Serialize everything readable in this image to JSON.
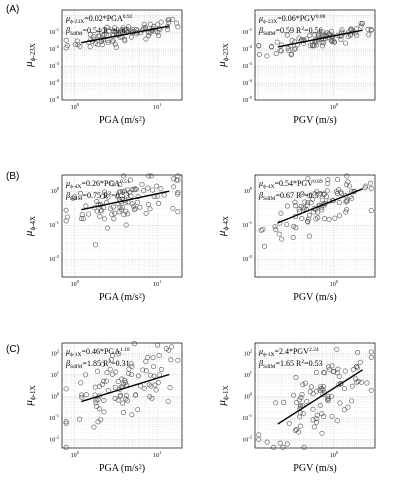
{
  "figure": {
    "panel_labels": [
      "(A)",
      "(B)",
      "(C)"
    ]
  },
  "chart_data": [
    {
      "type": "scatter",
      "panel": "(A)",
      "xlabel": "PGA (m/s²)",
      "ylabel": {
        "sym": "μ",
        "sub": "ϕ-23X"
      },
      "ann1": {
        "sym": "μ",
        "sub": "ϕ-23X",
        "text": "=0.02*PGA",
        "sup": "0.92"
      },
      "ann2": {
        "sym": "β",
        "sub": "SdIM",
        "text": "=0.54   R",
        "sup": "2",
        "tail": "=0.65"
      },
      "xlim": [
        0.7,
        20
      ],
      "xlog": true,
      "xticks": [
        {
          "v": 1,
          "b": "10",
          "e": "0"
        },
        {
          "v": 10,
          "b": "10",
          "e": "1"
        }
      ],
      "ylim": [
        1e-05,
        2
      ],
      "ylog": true,
      "yticks": [
        {
          "v": 0.1,
          "b": "10",
          "e": "-1"
        },
        {
          "v": 0.01,
          "b": "10",
          "e": "-2"
        },
        {
          "v": 0.001,
          "b": "10",
          "e": "-3"
        },
        {
          "v": 0.0001,
          "b": "10",
          "e": "-4"
        },
        {
          "v": 1e-05,
          "b": "10",
          "e": "-5"
        }
      ],
      "fit": {
        "a": 0.02,
        "b": 0.92,
        "x": [
          1.2,
          14
        ]
      },
      "n": 95,
      "grid": true,
      "marker": "open-circle",
      "line_color": "#000000"
    },
    {
      "type": "scatter",
      "panel": "(A)",
      "xlabel": "PGV (m/s)",
      "ylabel": {
        "sym": "μ",
        "sub": "ϕ-23X"
      },
      "ann1": {
        "sym": "μ",
        "sub": "ϕ-23X",
        "text": "=0.06*PGV",
        "sup": "0.88"
      },
      "ann2": {
        "sym": "β",
        "sub": "SdIM",
        "text": "=0.59   R",
        "sup": "2",
        "tail": "=0.56"
      },
      "xlim": [
        0.09,
        3.5
      ],
      "xlog": true,
      "xticks": [
        {
          "v": 1,
          "b": "10",
          "e": "0"
        }
      ],
      "ylim": [
        1e-05,
        2
      ],
      "ylog": true,
      "yticks": [
        {
          "v": 0.1,
          "b": "10",
          "e": "-1"
        },
        {
          "v": 0.01,
          "b": "10",
          "e": "-2"
        },
        {
          "v": 0.001,
          "b": "10",
          "e": "-3"
        },
        {
          "v": 0.0001,
          "b": "10",
          "e": "-4"
        },
        {
          "v": 1e-05,
          "b": "10",
          "e": "-5"
        }
      ],
      "fit": {
        "a": 0.06,
        "b": 0.88,
        "x": [
          0.18,
          2.4
        ]
      },
      "n": 95,
      "grid": true,
      "marker": "open-circle",
      "line_color": "#000000"
    },
    {
      "type": "scatter",
      "panel": "(B)",
      "xlabel": "PGA (m/s²)",
      "ylabel": {
        "sym": "μ",
        "sub": "ϕ-4X"
      },
      "ann1": {
        "sym": "μ",
        "sub": "ϕ-4X",
        "text": "=0.26*PGA",
        "sup": "0.51"
      },
      "ann2": {
        "sym": "β",
        "sub": "SdIM",
        "text": "=0.75   R",
        "sup": "2",
        "tail": "=0.53"
      },
      "xlim": [
        0.7,
        20
      ],
      "xlog": true,
      "xticks": [
        {
          "v": 1,
          "b": "10",
          "e": "0"
        },
        {
          "v": 10,
          "b": "10",
          "e": "1"
        }
      ],
      "ylim": [
        0.003,
        3
      ],
      "ylog": true,
      "yticks": [
        {
          "v": 1,
          "b": "10",
          "e": "0"
        },
        {
          "v": 0.1,
          "b": "10",
          "e": "-1"
        },
        {
          "v": 0.01,
          "b": "10",
          "e": "-2"
        }
      ],
      "fit": {
        "a": 0.26,
        "b": 0.51,
        "x": [
          1.2,
          14
        ]
      },
      "n": 95,
      "grid": true,
      "marker": "open-circle",
      "line_color": "#000000"
    },
    {
      "type": "scatter",
      "panel": "(B)",
      "xlabel": "PGV (m/s)",
      "ylabel": {
        "sym": "μ",
        "sub": "ϕ-4X"
      },
      "ann1": {
        "sym": "μ",
        "sub": "ϕ-4X",
        "text": "=0.54*PGV",
        "sup": "0.89"
      },
      "ann2": {
        "sym": "β",
        "sub": "SdIM",
        "text": "=0.67   R",
        "sup": "2",
        "tail": "=0.57"
      },
      "xlim": [
        0.09,
        3.5
      ],
      "xlog": true,
      "xticks": [
        {
          "v": 1,
          "b": "10",
          "e": "0"
        }
      ],
      "ylim": [
        0.003,
        3
      ],
      "ylog": true,
      "yticks": [
        {
          "v": 1,
          "b": "10",
          "e": "0"
        },
        {
          "v": 0.1,
          "b": "10",
          "e": "-1"
        },
        {
          "v": 0.01,
          "b": "10",
          "e": "-2"
        }
      ],
      "fit": {
        "a": 0.54,
        "b": 0.89,
        "x": [
          0.18,
          2.4
        ]
      },
      "n": 95,
      "grid": true,
      "marker": "open-circle",
      "line_color": "#000000"
    },
    {
      "type": "scatter",
      "panel": "(C)",
      "xlabel": "PGA (m/s²)",
      "ylabel": {
        "sym": "μ",
        "sub": "ϕ-1X"
      },
      "ann1": {
        "sym": "μ",
        "sub": "ϕ-1X",
        "text": "=0.46*PGA",
        "sup": "1.18"
      },
      "ann2": {
        "sym": "β",
        "sub": "SdIM",
        "text": "=1.85   R",
        "sup": "2",
        "tail": "=0.31"
      },
      "xlim": [
        0.7,
        20
      ],
      "xlog": true,
      "xticks": [
        {
          "v": 1,
          "b": "10",
          "e": "0"
        },
        {
          "v": 10,
          "b": "10",
          "e": "1"
        }
      ],
      "ylim": [
        0.004,
        300
      ],
      "ylog": true,
      "yticks": [
        {
          "v": 100,
          "b": "10",
          "e": "2"
        },
        {
          "v": 10,
          "b": "10",
          "e": "1"
        },
        {
          "v": 1,
          "b": "10",
          "e": "0"
        },
        {
          "v": 0.1,
          "b": "10",
          "e": "-1"
        },
        {
          "v": 0.01,
          "b": "10",
          "e": "-2"
        }
      ],
      "fit": {
        "a": 0.46,
        "b": 1.18,
        "x": [
          1.2,
          14
        ]
      },
      "n": 95,
      "grid": true,
      "marker": "open-circle",
      "line_color": "#000000"
    },
    {
      "type": "scatter",
      "panel": "(C)",
      "xlabel": "PGV (m/s)",
      "ylabel": {
        "sym": "μ",
        "sub": "ϕ-1X"
      },
      "ann1": {
        "sym": "μ",
        "sub": "ϕ-1X",
        "text": "=2.4*PGV",
        "sup": "2.24"
      },
      "ann2": {
        "sym": "β",
        "sub": "SdIM",
        "text": "=1.65   R",
        "sup": "2",
        "tail": "=0.53"
      },
      "xlim": [
        0.09,
        3.5
      ],
      "xlog": true,
      "xticks": [
        {
          "v": 1,
          "b": "10",
          "e": "0"
        }
      ],
      "ylim": [
        0.004,
        300
      ],
      "ylog": true,
      "yticks": [
        {
          "v": 100,
          "b": "10",
          "e": "2"
        },
        {
          "v": 10,
          "b": "10",
          "e": "1"
        },
        {
          "v": 1,
          "b": "10",
          "e": "0"
        },
        {
          "v": 0.1,
          "b": "10",
          "e": "-1"
        },
        {
          "v": 0.01,
          "b": "10",
          "e": "-2"
        }
      ],
      "fit": {
        "a": 2.4,
        "b": 2.24,
        "x": [
          0.18,
          2.4
        ]
      },
      "n": 95,
      "grid": true,
      "marker": "open-circle",
      "line_color": "#000000"
    }
  ]
}
